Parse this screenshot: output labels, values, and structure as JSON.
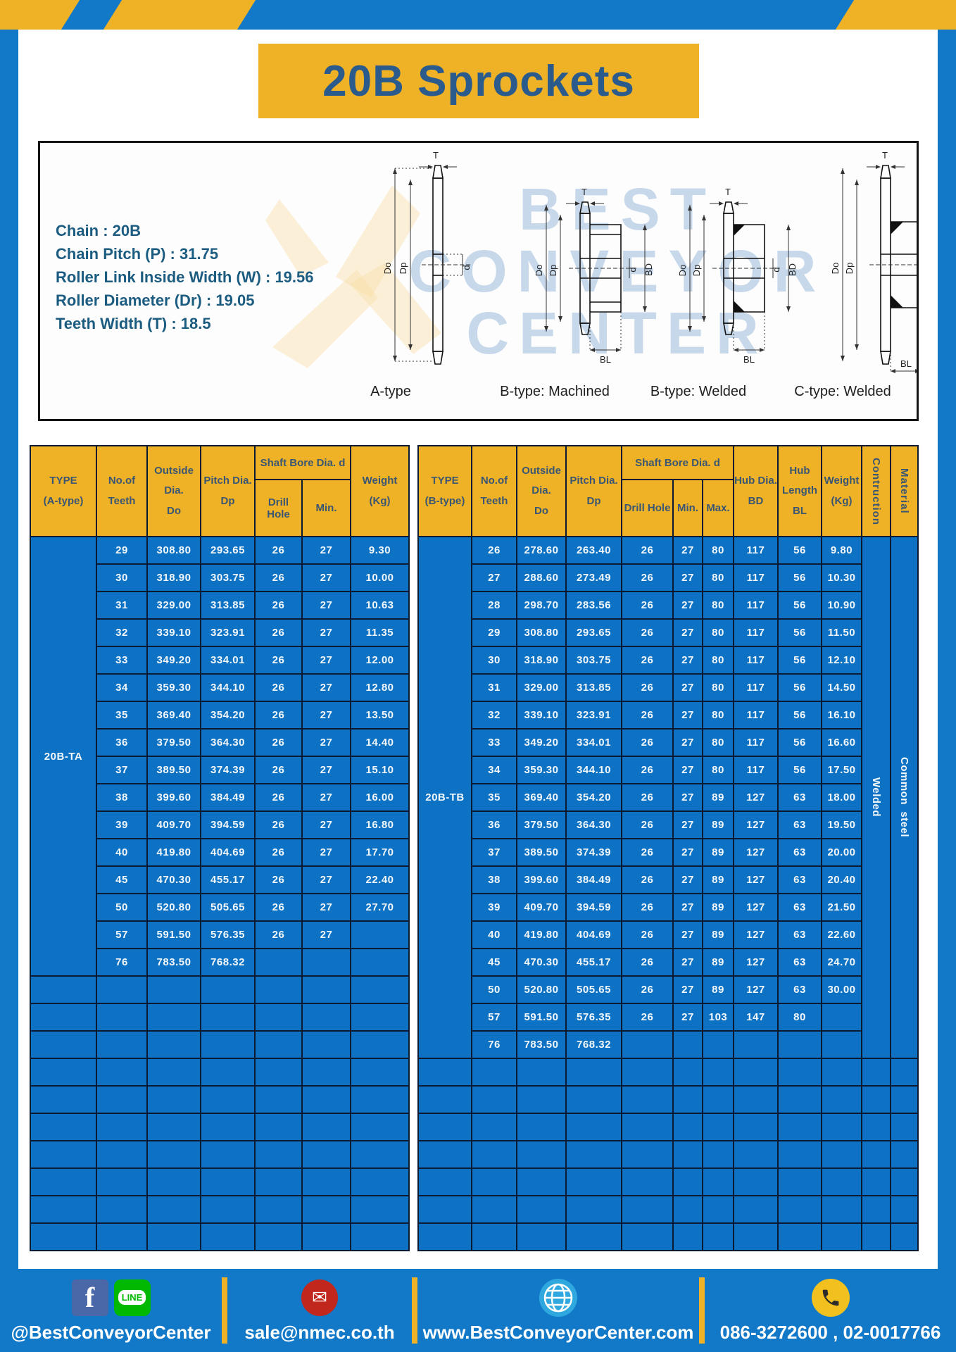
{
  "page": {
    "title": "20B Sprockets"
  },
  "specs": {
    "lines": [
      "Chain : 20B",
      "Chain Pitch (P) : 31.75",
      "Roller Link Inside Width (W) : 19.56",
      "Roller Diameter (Dr) : 19.05",
      "Teeth Width (T) : 18.5"
    ]
  },
  "diagram": {
    "captions": [
      "A-type",
      "B-type: Machined",
      "B-type: Welded",
      "C-type: Welded"
    ],
    "dims": {
      "t": "T",
      "outside": "Do",
      "pitch": "Dp",
      "bore": "d",
      "hub_dia": "BD",
      "hub_len": "BL"
    },
    "watermark": [
      "BEST",
      "CONVEYOR",
      "CENTER"
    ]
  },
  "left_table": {
    "headers": {
      "type": [
        "TYPE",
        "(A-type)"
      ],
      "teeth": [
        "No.of",
        "Teeth"
      ],
      "outside": [
        "Outside",
        "Dia.",
        "Do"
      ],
      "pitch": [
        "Pitch Dia.",
        "Dp"
      ],
      "shaft_bore": "Shaft Bore Dia. d",
      "drill_hole": "Drill Hole",
      "min": "Min.",
      "weight": [
        "Weight",
        "(Kg)"
      ]
    },
    "type_label": "20B-TA",
    "rows": [
      [
        "29",
        "308.80",
        "293.65",
        "26",
        "27",
        "9.30"
      ],
      [
        "30",
        "318.90",
        "303.75",
        "26",
        "27",
        "10.00"
      ],
      [
        "31",
        "329.00",
        "313.85",
        "26",
        "27",
        "10.63"
      ],
      [
        "32",
        "339.10",
        "323.91",
        "26",
        "27",
        "11.35"
      ],
      [
        "33",
        "349.20",
        "334.01",
        "26",
        "27",
        "12.00"
      ],
      [
        "34",
        "359.30",
        "344.10",
        "26",
        "27",
        "12.80"
      ],
      [
        "35",
        "369.40",
        "354.20",
        "26",
        "27",
        "13.50"
      ],
      [
        "36",
        "379.50",
        "364.30",
        "26",
        "27",
        "14.40"
      ],
      [
        "37",
        "389.50",
        "374.39",
        "26",
        "27",
        "15.10"
      ],
      [
        "38",
        "399.60",
        "384.49",
        "26",
        "27",
        "16.00"
      ],
      [
        "39",
        "409.70",
        "394.59",
        "26",
        "27",
        "16.80"
      ],
      [
        "40",
        "419.80",
        "404.69",
        "26",
        "27",
        "17.70"
      ],
      [
        "45",
        "470.30",
        "455.17",
        "26",
        "27",
        "22.40"
      ],
      [
        "50",
        "520.80",
        "505.65",
        "26",
        "27",
        "27.70"
      ],
      [
        "57",
        "591.50",
        "576.35",
        "26",
        "27",
        ""
      ],
      [
        "76",
        "783.50",
        "768.32",
        "",
        "",
        ""
      ]
    ],
    "empty_rows": 10
  },
  "right_table": {
    "headers": {
      "type": [
        "TYPE",
        "(B-type)"
      ],
      "teeth": [
        "No.of",
        "Teeth"
      ],
      "outside": [
        "Outside",
        "Dia.",
        "Do"
      ],
      "pitch": [
        "Pitch Dia.",
        "Dp"
      ],
      "shaft_bore": "Shaft Bore Dia. d",
      "drill_hole": "Drill Hole",
      "min": "Min.",
      "max": "Max.",
      "hub_dia": [
        "Hub Dia.",
        "BD"
      ],
      "hub_len": [
        "Hub",
        "Length",
        "BL"
      ],
      "weight": [
        "Weight",
        "(Kg)"
      ],
      "construction": "Contruction",
      "material": "Material"
    },
    "type_label": "20B-TB",
    "construction_value": "Welded",
    "material_value": "Common  steel",
    "rows": [
      [
        "26",
        "278.60",
        "263.40",
        "26",
        "27",
        "80",
        "117",
        "56",
        "9.80"
      ],
      [
        "27",
        "288.60",
        "273.49",
        "26",
        "27",
        "80",
        "117",
        "56",
        "10.30"
      ],
      [
        "28",
        "298.70",
        "283.56",
        "26",
        "27",
        "80",
        "117",
        "56",
        "10.90"
      ],
      [
        "29",
        "308.80",
        "293.65",
        "26",
        "27",
        "80",
        "117",
        "56",
        "11.50"
      ],
      [
        "30",
        "318.90",
        "303.75",
        "26",
        "27",
        "80",
        "117",
        "56",
        "12.10"
      ],
      [
        "31",
        "329.00",
        "313.85",
        "26",
        "27",
        "80",
        "117",
        "56",
        "14.50"
      ],
      [
        "32",
        "339.10",
        "323.91",
        "26",
        "27",
        "80",
        "117",
        "56",
        "16.10"
      ],
      [
        "33",
        "349.20",
        "334.01",
        "26",
        "27",
        "80",
        "117",
        "56",
        "16.60"
      ],
      [
        "34",
        "359.30",
        "344.10",
        "26",
        "27",
        "80",
        "117",
        "56",
        "17.50"
      ],
      [
        "35",
        "369.40",
        "354.20",
        "26",
        "27",
        "89",
        "127",
        "63",
        "18.00"
      ],
      [
        "36",
        "379.50",
        "364.30",
        "26",
        "27",
        "89",
        "127",
        "63",
        "19.50"
      ],
      [
        "37",
        "389.50",
        "374.39",
        "26",
        "27",
        "89",
        "127",
        "63",
        "20.00"
      ],
      [
        "38",
        "399.60",
        "384.49",
        "26",
        "27",
        "89",
        "127",
        "63",
        "20.40"
      ],
      [
        "39",
        "409.70",
        "394.59",
        "26",
        "27",
        "89",
        "127",
        "63",
        "21.50"
      ],
      [
        "40",
        "419.80",
        "404.69",
        "26",
        "27",
        "89",
        "127",
        "63",
        "22.60"
      ],
      [
        "45",
        "470.30",
        "455.17",
        "26",
        "27",
        "89",
        "127",
        "63",
        "24.70"
      ],
      [
        "50",
        "520.80",
        "505.65",
        "26",
        "27",
        "89",
        "127",
        "63",
        "30.00"
      ],
      [
        "57",
        "591.50",
        "576.35",
        "26",
        "27",
        "103",
        "147",
        "80",
        ""
      ],
      [
        "76",
        "783.50",
        "768.32",
        "",
        "",
        "",
        "",
        "",
        ""
      ]
    ],
    "empty_rows": 7
  },
  "footer": {
    "social_handle": "@BestConveyorCenter",
    "line_label": "LINE",
    "facebook_letter": "f",
    "mail_glyph": "✉",
    "email": "sale@nmec.co.th",
    "website": "www.BestConveyorCenter.com",
    "phones": "086-3272600 , 02-0017766"
  },
  "colors": {
    "accent_yellow": "#efb226",
    "frame_blue": "#1278c8",
    "table_blue": "#0e72c4",
    "border_navy": "#0a1a33",
    "title_text": "#2a5b8c",
    "spec_text": "#1c5c80",
    "header_text": "#3b5672"
  }
}
